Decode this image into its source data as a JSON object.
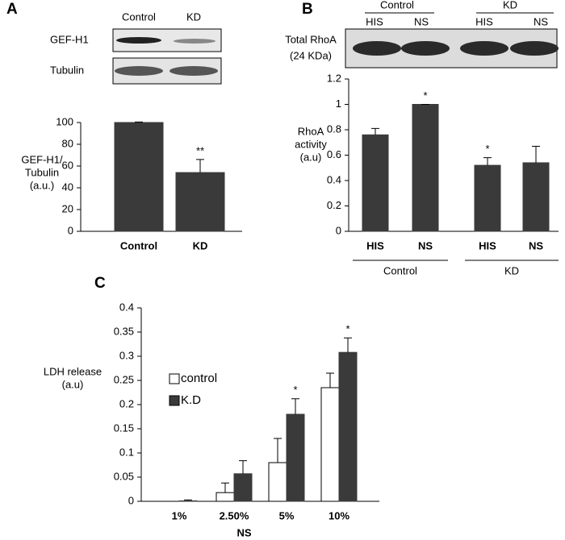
{
  "panel_labels": [
    "A",
    "B",
    "C"
  ],
  "blots": {
    "A": {
      "lanes": [
        "Control",
        "KD"
      ],
      "rows": [
        "GEF-H1",
        "Tubulin"
      ]
    },
    "B": {
      "groups": [
        "Control",
        "KD"
      ],
      "lanes": [
        "HIS",
        "NS",
        "HIS",
        "NS"
      ],
      "label": [
        "Total RhoA",
        "(24 KDa)"
      ]
    }
  },
  "chart_data": [
    {
      "type": "bar",
      "categories": [
        "Control",
        "KD"
      ],
      "values": [
        100,
        54
      ],
      "errors": [
        0.5,
        12
      ],
      "significance": [
        null,
        "**"
      ],
      "color": "#3a3a3a",
      "ylabel": [
        "GEF-H1/",
        "Tubulin",
        "(a.u.)"
      ],
      "ylim": [
        0,
        100
      ],
      "yticks": [
        0,
        20,
        40,
        60,
        80,
        100
      ]
    },
    {
      "type": "bar",
      "categories": [
        "HIS",
        "NS",
        "HIS",
        "NS"
      ],
      "values": [
        0.76,
        1.0,
        0.52,
        0.54
      ],
      "errors": [
        0.05,
        0,
        0.06,
        0.13
      ],
      "significance": [
        null,
        "*",
        "*",
        null
      ],
      "color": "#3a3a3a",
      "group_labels": [
        "Control",
        "KD"
      ],
      "ylabel": [
        "RhoA",
        "activity",
        "(a.u)"
      ],
      "ylim": [
        0,
        1.2
      ],
      "yticks": [
        0,
        0.2,
        0.4,
        0.6,
        0.8,
        1,
        1.2
      ]
    },
    {
      "type": "bar",
      "categories": [
        "1%",
        "2.50%",
        "5%",
        "10%"
      ],
      "series": [
        {
          "name": "control",
          "color": "#ffffff",
          "values": [
            0,
            0.018,
            0.08,
            0.235
          ],
          "errors": [
            0,
            0.02,
            0.05,
            0.03
          ],
          "significance": [
            null,
            null,
            null,
            null
          ]
        },
        {
          "name": "K.D",
          "color": "#3a3a3a",
          "values": [
            0.001,
            0.057,
            0.18,
            0.308
          ],
          "errors": [
            0.002,
            0.027,
            0.032,
            0.03
          ],
          "significance": [
            null,
            null,
            "*",
            "*"
          ]
        }
      ],
      "xlabel": "NS",
      "ylabel": [
        "LDH release",
        "(a.u)"
      ],
      "ylim": [
        0,
        0.4
      ],
      "yticks": [
        0,
        0.05,
        0.1,
        0.15,
        0.2,
        0.25,
        0.3,
        0.35,
        0.4
      ]
    }
  ]
}
